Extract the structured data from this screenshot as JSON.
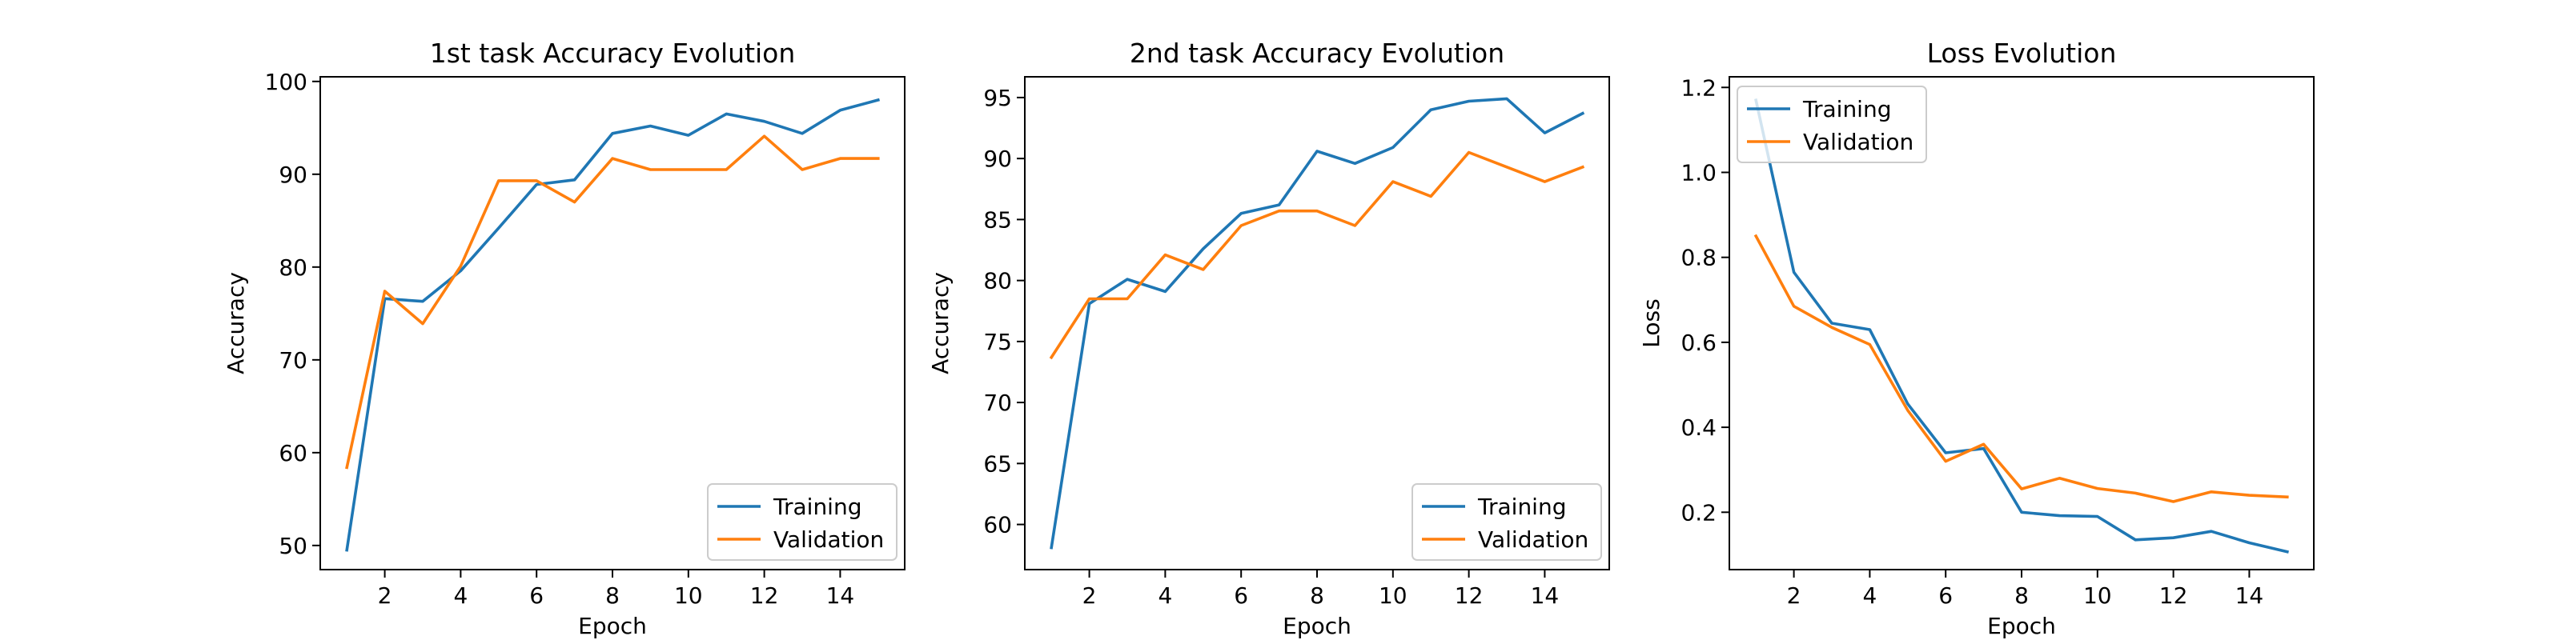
{
  "chart_data": [
    {
      "type": "line",
      "title": "1st task Accuracy Evolution",
      "xlabel": "Epoch",
      "ylabel": "Accuracy",
      "xlim": [
        0.3,
        15.7
      ],
      "ylim": [
        47.4,
        100.5
      ],
      "xticks": [
        2,
        4,
        6,
        8,
        10,
        12,
        14
      ],
      "yticks": [
        50,
        60,
        70,
        80,
        90,
        100
      ],
      "legend_loc": "lower-right",
      "x": [
        1,
        2,
        3,
        4,
        5,
        6,
        7,
        8,
        9,
        10,
        11,
        12,
        13,
        14,
        15
      ],
      "series": [
        {
          "name": "Training",
          "color": "#1f77b4",
          "values": [
            49.5,
            76.6,
            76.3,
            79.6,
            84.2,
            88.9,
            89.4,
            94.4,
            95.2,
            94.2,
            96.5,
            95.7,
            94.4,
            96.9,
            98.0
          ]
        },
        {
          "name": "Validation",
          "color": "#ff7f0e",
          "values": [
            58.4,
            77.4,
            73.9,
            80.1,
            89.3,
            89.3,
            87.0,
            91.7,
            90.5,
            90.5,
            90.5,
            94.1,
            90.5,
            91.7,
            91.7
          ]
        }
      ]
    },
    {
      "type": "line",
      "title": "2nd task Accuracy Evolution",
      "xlabel": "Epoch",
      "ylabel": "Accuracy",
      "xlim": [
        0.3,
        15.7
      ],
      "ylim": [
        56.3,
        96.7
      ],
      "xticks": [
        2,
        4,
        6,
        8,
        10,
        12,
        14
      ],
      "yticks": [
        60,
        65,
        70,
        75,
        80,
        85,
        90,
        95
      ],
      "legend_loc": "lower-right",
      "x": [
        1,
        2,
        3,
        4,
        5,
        6,
        7,
        8,
        9,
        10,
        11,
        12,
        13,
        14,
        15
      ],
      "series": [
        {
          "name": "Training",
          "color": "#1f77b4",
          "values": [
            58.1,
            78.1,
            80.1,
            79.1,
            82.6,
            85.5,
            86.2,
            90.6,
            89.6,
            90.9,
            94.0,
            94.7,
            94.9,
            92.1,
            93.7
          ]
        },
        {
          "name": "Validation",
          "color": "#ff7f0e",
          "values": [
            73.7,
            78.5,
            78.5,
            82.1,
            80.9,
            84.5,
            85.7,
            85.7,
            84.5,
            88.1,
            86.9,
            90.5,
            89.3,
            88.1,
            89.3
          ]
        }
      ]
    },
    {
      "type": "line",
      "title": "Loss Evolution",
      "xlabel": "Epoch",
      "ylabel": "Loss",
      "xlim": [
        0.3,
        15.7
      ],
      "ylim": [
        0.065,
        1.225
      ],
      "xticks": [
        2,
        4,
        6,
        8,
        10,
        12,
        14
      ],
      "yticks": [
        0.2,
        0.4,
        0.6,
        0.8,
        1.0,
        1.2
      ],
      "ytick_labels": [
        "0.2",
        "0.4",
        "0.6",
        "0.8",
        "1.0",
        "1.2"
      ],
      "legend_loc": "upper-left",
      "x": [
        1,
        2,
        3,
        4,
        5,
        6,
        7,
        8,
        9,
        10,
        11,
        12,
        13,
        14,
        15
      ],
      "series": [
        {
          "name": "Training",
          "color": "#1f77b4",
          "values": [
            1.17,
            0.765,
            0.645,
            0.63,
            0.455,
            0.34,
            0.35,
            0.2,
            0.192,
            0.19,
            0.135,
            0.14,
            0.155,
            0.128,
            0.107
          ]
        },
        {
          "name": "Validation",
          "color": "#ff7f0e",
          "values": [
            0.85,
            0.685,
            0.635,
            0.595,
            0.44,
            0.32,
            0.36,
            0.255,
            0.28,
            0.256,
            0.245,
            0.225,
            0.248,
            0.24,
            0.236
          ]
        }
      ]
    }
  ]
}
